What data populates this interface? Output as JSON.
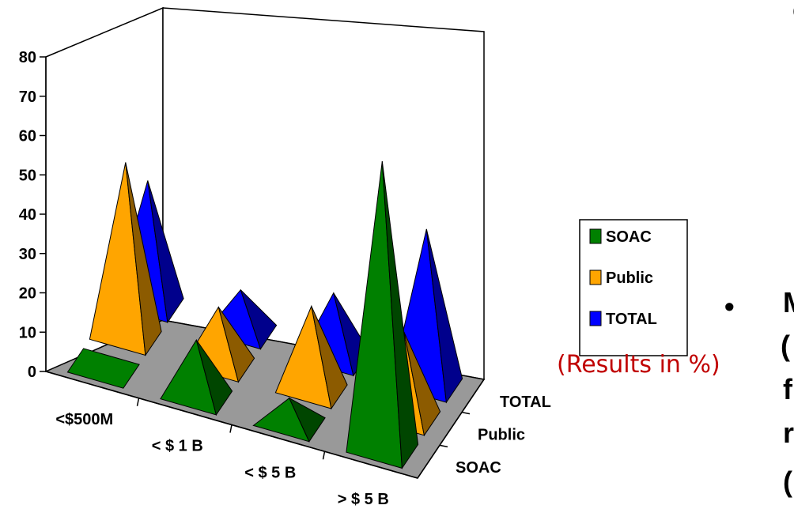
{
  "chart_data": {
    "type": "bar",
    "bar_shape": "3d-pyramid",
    "categories": [
      "<$500M",
      "< $ 1 B",
      "< $ 5 B",
      "> $ 5 B"
    ],
    "series": [
      {
        "name": "SOAC",
        "color": "#008000",
        "values": [
          0,
          14,
          6,
          73
        ]
      },
      {
        "name": "Public",
        "color": "#ffa500",
        "values": [
          44,
          14,
          21,
          21
        ]
      },
      {
        "name": "TOTAL",
        "color": "#0000ff",
        "values": [
          31,
          10,
          16,
          39
        ]
      }
    ],
    "depth_labels": [
      "SOAC",
      "Public",
      "TOTAL"
    ],
    "ylim": [
      0,
      80
    ],
    "yticks": [
      "0",
      "10",
      "20",
      "30",
      "40",
      "50",
      "60",
      "70",
      "80"
    ],
    "legend": {
      "placement": "right",
      "entries": [
        "SOAC",
        "Public",
        "TOTAL"
      ]
    },
    "annotation": "(Results in %)"
  },
  "side_text": {
    "fragments": [
      "c",
      "M",
      "(",
      "f",
      "r",
      "("
    ]
  },
  "bullet_glyph": "•"
}
